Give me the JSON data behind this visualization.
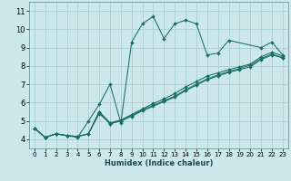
{
  "title": "",
  "xlabel": "Humidex (Indice chaleur)",
  "xlim": [
    -0.5,
    23.5
  ],
  "ylim": [
    3.5,
    11.5
  ],
  "xticks": [
    0,
    1,
    2,
    3,
    4,
    5,
    6,
    7,
    8,
    9,
    10,
    11,
    12,
    13,
    14,
    15,
    16,
    17,
    18,
    19,
    20,
    21,
    22,
    23
  ],
  "yticks": [
    4,
    5,
    6,
    7,
    8,
    9,
    10,
    11
  ],
  "bg_color": "#cce8eb",
  "grid_color": "#aacfd4",
  "line_color": "#1a6e68",
  "series": [
    {
      "x": [
        0,
        1,
        2,
        3,
        4,
        5,
        6,
        7,
        8,
        9,
        10,
        11,
        12,
        13,
        14,
        15,
        16,
        17,
        18,
        21,
        22,
        23
      ],
      "y": [
        4.6,
        4.1,
        4.3,
        4.2,
        4.1,
        5.0,
        5.9,
        7.0,
        4.9,
        9.3,
        10.3,
        10.7,
        9.5,
        10.3,
        10.5,
        10.3,
        8.6,
        8.7,
        9.4,
        9.0,
        9.3,
        8.6
      ]
    },
    {
      "x": [
        0,
        1,
        2,
        3,
        4,
        5,
        6,
        7,
        8,
        9,
        10,
        11,
        12,
        13,
        14,
        15,
        16,
        17,
        18,
        19,
        20,
        21,
        22,
        23
      ],
      "y": [
        4.6,
        4.1,
        4.3,
        4.2,
        4.15,
        4.3,
        5.5,
        4.9,
        5.05,
        5.35,
        5.65,
        5.95,
        6.2,
        6.5,
        6.85,
        7.15,
        7.45,
        7.62,
        7.8,
        7.95,
        8.1,
        8.5,
        8.75,
        8.55
      ]
    },
    {
      "x": [
        0,
        1,
        2,
        3,
        4,
        5,
        6,
        7,
        8,
        9,
        10,
        11,
        12,
        13,
        14,
        15,
        16,
        17,
        18,
        19,
        20,
        21,
        22,
        23
      ],
      "y": [
        4.6,
        4.1,
        4.3,
        4.2,
        4.15,
        4.3,
        5.5,
        4.85,
        5.0,
        5.3,
        5.6,
        5.85,
        6.1,
        6.35,
        6.7,
        7.0,
        7.3,
        7.5,
        7.7,
        7.85,
        8.05,
        8.4,
        8.65,
        8.45
      ]
    },
    {
      "x": [
        0,
        1,
        2,
        3,
        4,
        5,
        6,
        7,
        8,
        9,
        10,
        11,
        12,
        13,
        14,
        15,
        16,
        17,
        18,
        19,
        20,
        21,
        22,
        23
      ],
      "y": [
        4.6,
        4.1,
        4.3,
        4.2,
        4.15,
        4.3,
        5.4,
        4.85,
        5.0,
        5.25,
        5.55,
        5.8,
        6.05,
        6.3,
        6.65,
        6.95,
        7.25,
        7.45,
        7.65,
        7.8,
        7.95,
        8.35,
        8.6,
        8.45
      ]
    }
  ]
}
